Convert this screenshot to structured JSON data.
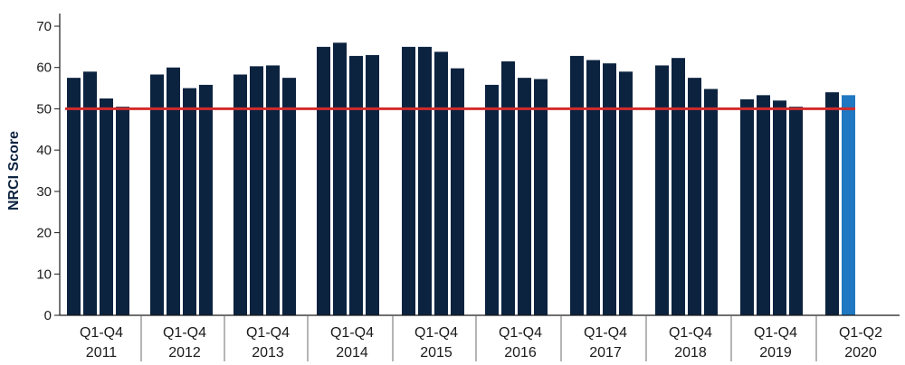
{
  "chart_data": {
    "type": "bar",
    "title": "",
    "xlabel": "",
    "ylabel": "NRCI Score",
    "ylim": [
      0,
      70
    ],
    "yticks": [
      0,
      10,
      20,
      30,
      40,
      50,
      60,
      70
    ],
    "grid": false,
    "groups": [
      {
        "range": "Q1-Q4",
        "year": "2011",
        "values": [
          57.5,
          59.0,
          52.5,
          50.5
        ]
      },
      {
        "range": "Q1-Q4",
        "year": "2012",
        "values": [
          58.3,
          60.0,
          55.0,
          55.8
        ]
      },
      {
        "range": "Q1-Q4",
        "year": "2013",
        "values": [
          58.3,
          60.3,
          60.5,
          57.5
        ]
      },
      {
        "range": "Q1-Q4",
        "year": "2014",
        "values": [
          65.0,
          66.0,
          62.8,
          63.0
        ]
      },
      {
        "range": "Q1-Q4",
        "year": "2015",
        "values": [
          65.0,
          65.0,
          63.8,
          59.8
        ]
      },
      {
        "range": "Q1-Q4",
        "year": "2016",
        "values": [
          55.8,
          61.5,
          57.5,
          57.2
        ]
      },
      {
        "range": "Q1-Q4",
        "year": "2017",
        "values": [
          62.8,
          61.8,
          61.0,
          59.0
        ]
      },
      {
        "range": "Q1-Q4",
        "year": "2018",
        "values": [
          60.5,
          62.3,
          57.5,
          54.8
        ]
      },
      {
        "range": "Q1-Q4",
        "year": "2019",
        "values": [
          52.3,
          53.3,
          52.0,
          50.5
        ]
      },
      {
        "range": "Q1-Q2",
        "year": "2020",
        "values": [
          54.0,
          53.3
        ],
        "highlight_last": true
      }
    ],
    "reference_line": {
      "value": 50,
      "color": "#d42a2a"
    },
    "colors": {
      "bar": "#0c2340",
      "highlight": "#1f78c1",
      "axis": "#1a1a1a",
      "divider": "#6b6b6b"
    }
  }
}
